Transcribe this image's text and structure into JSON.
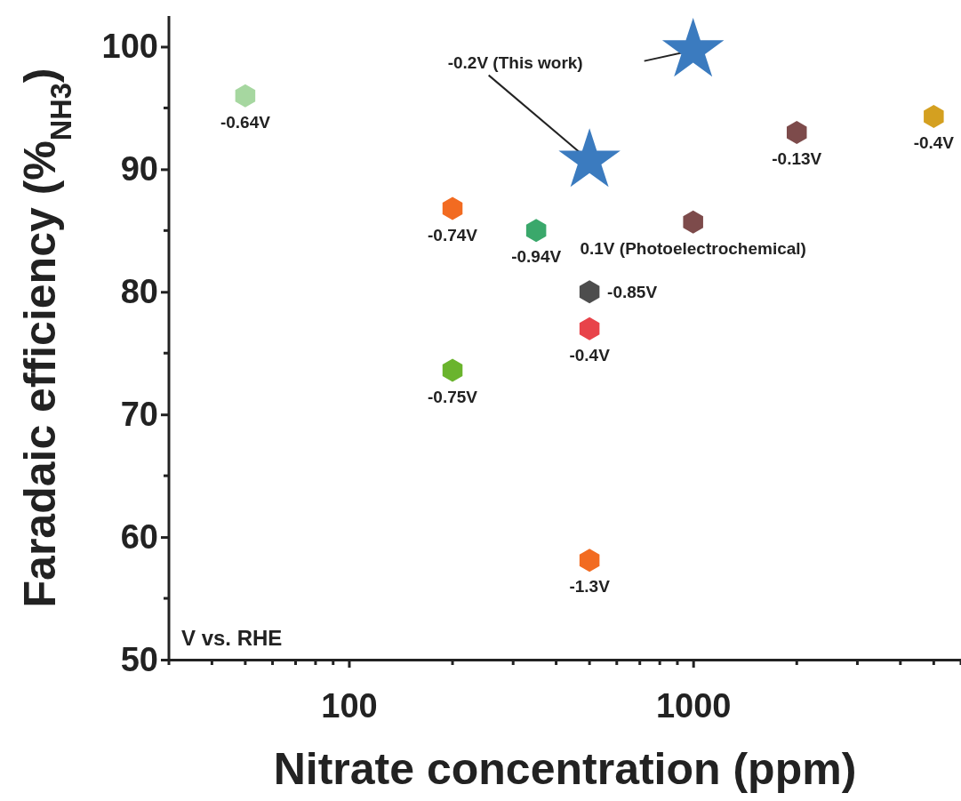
{
  "chart_data": {
    "type": "scatter",
    "xlabel": "Nitrate concentration (ppm)",
    "ylabel": "Faradaic efficiency (%$_{NH3}$)",
    "log": "x",
    "xlim": [
      30,
      6000
    ],
    "xticks": [
      100,
      1000
    ],
    "ylim": [
      50,
      102.5
    ],
    "yticks": [
      50,
      60,
      70,
      80,
      90,
      100
    ],
    "grid": false,
    "series": [
      {
        "type": "scatter",
        "x": [
          50,
          200,
          350,
          500,
          500,
          200,
          500,
          2000,
          1000,
          5000
        ],
        "values": [
          96,
          86.8,
          85,
          80,
          77,
          73.6,
          58.1,
          93,
          85.7,
          94.3
        ],
        "colors": [
          "#a6d7a0",
          "#f26b21",
          "#3aa86b",
          "#4d4d4d",
          "#e8434a",
          "#6ab42d",
          "#f26b21",
          "#7d4b4b",
          "#7d4b4b",
          "#d4a020"
        ]
      },
      {
        "type": "scatter",
        "marker": "star",
        "x": [
          1000,
          500
        ],
        "values": [
          99.7,
          90.7
        ],
        "color": "#3b7bbf"
      }
    ],
    "annotations": [
      {
        "text": "-0.64V",
        "x": 50,
        "y": 96
      },
      {
        "text": "-0.74V",
        "x": 200,
        "y": 86.8
      },
      {
        "text": "-0.94V",
        "x": 350,
        "y": 85
      },
      {
        "text": "-0.85V",
        "x": 500,
        "y": 80
      },
      {
        "text": "-0.4V",
        "x": 500,
        "y": 77
      },
      {
        "text": "-0.75V",
        "x": 200,
        "y": 73.6
      },
      {
        "text": "-1.3V",
        "x": 500,
        "y": 58.1
      },
      {
        "text": "-0.13V",
        "x": 2000,
        "y": 93
      },
      {
        "text": "0.1V (Photoelectrochemical)",
        "x": 1000,
        "y": 85.7
      },
      {
        "text": "-0.4V",
        "x": 5000,
        "y": 94.3
      },
      {
        "text": "-0.2V (This work)",
        "x": 500,
        "y": 90.7
      },
      "V vs. RHE"
    ]
  }
}
